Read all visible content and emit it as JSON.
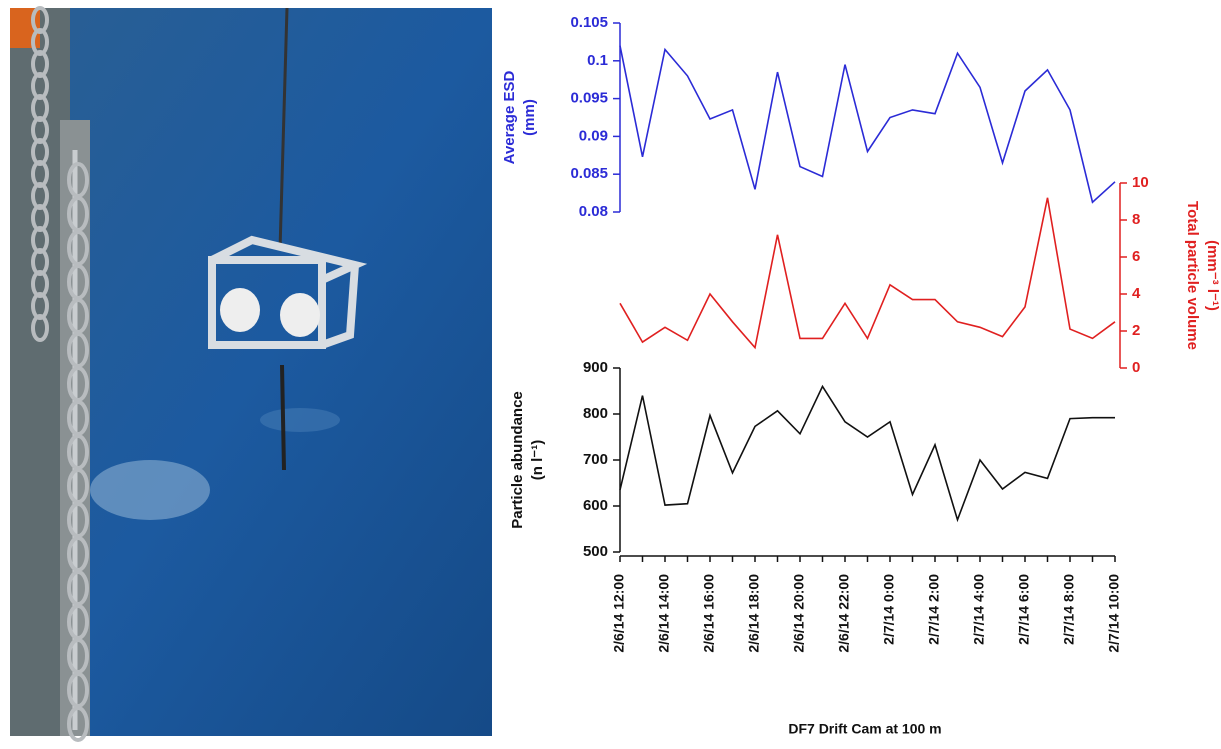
{
  "chart_data": [
    {
      "type": "line",
      "ylabel": [
        "Average ESD",
        "(mm)"
      ],
      "color": "#2b2bd6",
      "axis_side": "left",
      "ylim": [
        0.08,
        0.105
      ],
      "yticks": [
        0.08,
        0.085,
        0.09,
        0.095,
        0.1,
        0.105
      ],
      "values": [
        0.102,
        0.0873,
        0.1015,
        0.098,
        0.0923,
        0.0935,
        0.083,
        0.0985,
        0.086,
        0.0847,
        0.0995,
        0.088,
        0.0925,
        0.0935,
        0.093,
        0.101,
        0.0965,
        0.0865,
        0.096,
        0.0988,
        0.0935,
        0.0813,
        0.084
      ]
    },
    {
      "type": "line",
      "ylabel": [
        "Total particle volume",
        "(mm⁻³ l⁻¹)"
      ],
      "color": "#e02020",
      "axis_side": "right",
      "ylim": [
        0,
        10
      ],
      "yticks": [
        0,
        2,
        4,
        6,
        8,
        10
      ],
      "values": [
        3.5,
        1.4,
        2.2,
        1.5,
        4.0,
        2.5,
        1.1,
        7.2,
        1.6,
        1.6,
        3.5,
        1.6,
        4.5,
        3.7,
        3.7,
        2.5,
        2.2,
        1.7,
        3.3,
        9.2,
        2.1,
        1.6,
        2.5
      ]
    },
    {
      "type": "line",
      "ylabel": [
        "Particle abundance",
        "(n l⁻¹)"
      ],
      "color": "#111111",
      "axis_side": "left",
      "ylim": [
        500,
        900
      ],
      "yticks": [
        500,
        600,
        700,
        800,
        900
      ],
      "values": [
        635,
        840,
        602,
        605,
        797,
        672,
        773,
        807,
        757,
        860,
        783,
        750,
        783,
        625,
        733,
        570,
        700,
        637,
        673,
        660,
        790,
        792,
        792
      ],
      "xlabel": "DF7 Drift Cam at 100 m",
      "categories": [
        "2/6/14 12:00",
        null,
        "2/6/14 14:00",
        null,
        "2/6/14 16:00",
        null,
        "2/6/14 18:00",
        null,
        "2/6/14 20:00",
        null,
        "2/6/14 22:00",
        null,
        "2/7/14 0:00",
        null,
        "2/7/14 2:00",
        null,
        "2/7/14 4:00",
        null,
        "2/7/14 6:00",
        null,
        "2/7/14 8:00",
        null,
        "2/7/14 10:00"
      ]
    }
  ]
}
